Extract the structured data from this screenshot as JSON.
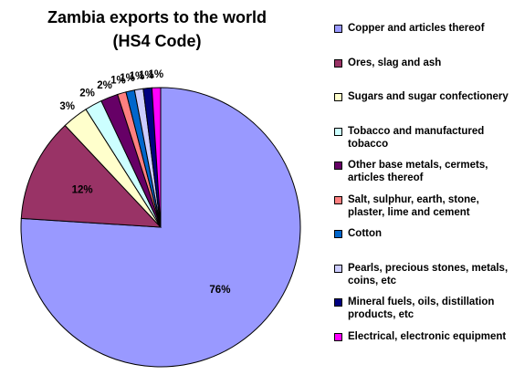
{
  "chart_data": {
    "type": "pie",
    "title": "Zambia exports to the world",
    "subtitle": "(HS4 Code)",
    "categories": [
      "Copper and articles thereof",
      "Ores, slag and ash",
      "Sugars and sugar confectionery",
      "Tobacco and manufactured tobacco",
      "Other base metals, cermets, articles thereof",
      "Salt, sulphur, earth, stone, plaster, lime and cement",
      "Cotton",
      "Pearls, precious stones, metals, coins, etc",
      "Mineral fuels, oils, distillation products, etc",
      "Electrical, electronic equipment"
    ],
    "values": [
      76,
      12,
      3,
      2,
      2,
      1,
      1,
      1,
      1,
      1
    ],
    "value_labels": [
      "76%",
      "12%",
      "3%",
      "2%",
      "2%",
      "1%",
      "1%",
      "1%",
      "1%",
      "1%"
    ],
    "colors": [
      "#9999ff",
      "#993366",
      "#ffffcc",
      "#ccffff",
      "#660066",
      "#ff8080",
      "#0066cc",
      "#ccccff",
      "#000080",
      "#ff00ff"
    ],
    "legend": "right"
  }
}
